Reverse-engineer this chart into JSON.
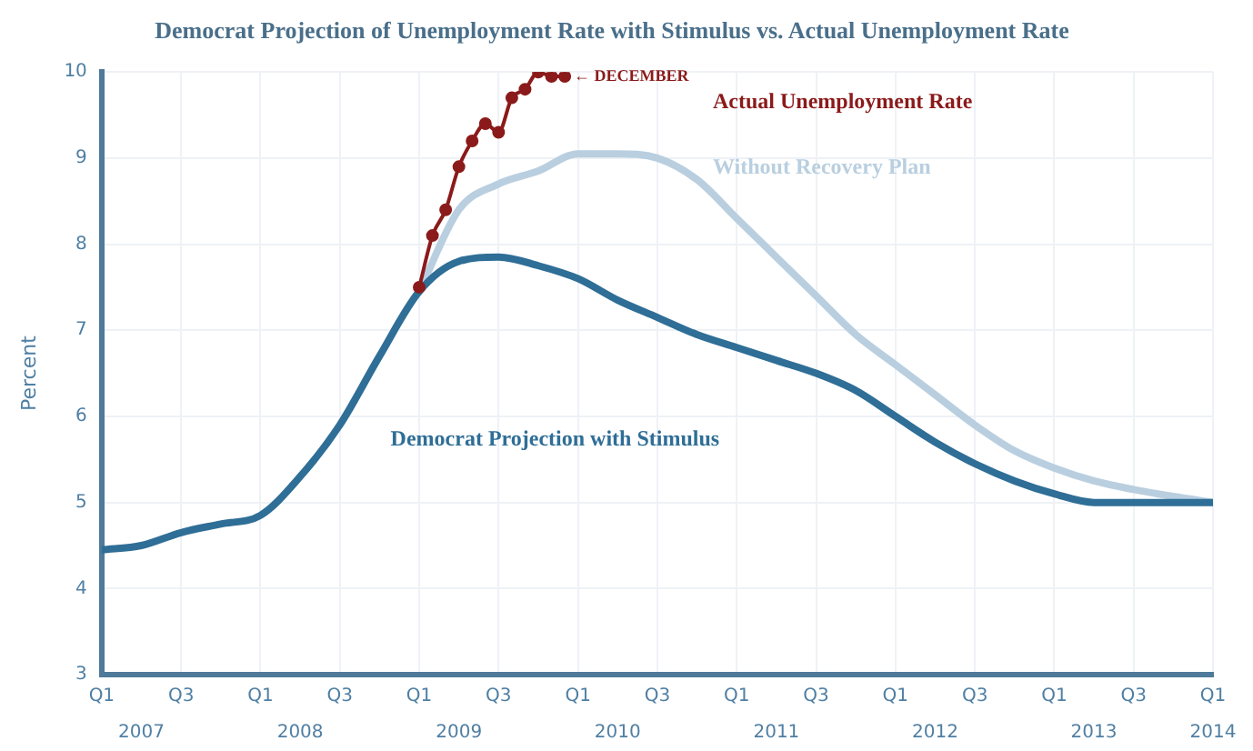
{
  "chart_data": {
    "type": "line",
    "title": "Democrat Projection of Unemployment Rate with Stimulus vs. Actual Unemployment Rate",
    "ylabel": "Percent",
    "xlim": [
      "2007-01",
      "2014-01"
    ],
    "xticks": [
      {
        "value": "2007-04",
        "label": "2007"
      },
      {
        "value": "2008-04",
        "label": "2008"
      },
      {
        "value": "2009-04",
        "label": "2009"
      },
      {
        "value": "2010-04",
        "label": "2010"
      },
      {
        "value": "2011-04",
        "label": "2011"
      },
      {
        "value": "2012-04",
        "label": "2012"
      },
      {
        "value": "2013-04",
        "label": "2013"
      },
      {
        "value": "2014-01",
        "label": "2014"
      }
    ],
    "x2lim": [
      "2007-01",
      "2014-01"
    ],
    "x2ticks": [
      {
        "value": "2007-01",
        "label": "Q1"
      },
      {
        "value": "2007-07",
        "label": "Q3"
      },
      {
        "value": "2008-01",
        "label": "Q1"
      },
      {
        "value": "2008-07",
        "label": "Q3"
      },
      {
        "value": "2009-01",
        "label": "Q1"
      },
      {
        "value": "2009-07",
        "label": "Q3"
      },
      {
        "value": "2010-01",
        "label": "Q1"
      },
      {
        "value": "2010-07",
        "label": "Q3"
      },
      {
        "value": "2011-01",
        "label": "Q1"
      },
      {
        "value": "2011-07",
        "label": "Q3"
      },
      {
        "value": "2012-01",
        "label": "Q1"
      },
      {
        "value": "2012-07",
        "label": "Q3"
      },
      {
        "value": "2013-01",
        "label": "Q1"
      },
      {
        "value": "2013-07",
        "label": "Q3"
      },
      {
        "value": "2014-01",
        "label": "Q1"
      }
    ],
    "ylim": [
      3,
      10
    ],
    "yticks": [
      3,
      4,
      5,
      6,
      7,
      8,
      9,
      10
    ],
    "grid": true,
    "series": [
      {
        "name": "Without Recovery Plan",
        "color": "#b9cfe0",
        "x": [
          "2009-01",
          "2009-04",
          "2009-07",
          "2009-10",
          "2010-01",
          "2010-04",
          "2010-07",
          "2010-10",
          "2011-01",
          "2011-04",
          "2011-07",
          "2011-10",
          "2012-01",
          "2012-04",
          "2012-07",
          "2012-10",
          "2013-01",
          "2013-04",
          "2013-07",
          "2013-10",
          "2014-01"
        ],
        "values": [
          7.45,
          8.4,
          8.7,
          8.85,
          9.05,
          9.05,
          9.0,
          8.75,
          8.3,
          7.85,
          7.4,
          6.95,
          6.6,
          6.25,
          5.9,
          5.6,
          5.4,
          5.25,
          5.15,
          5.07,
          5.0
        ]
      },
      {
        "name": "Democrat Projection with Stimulus",
        "color": "#2f6e96",
        "x": [
          "2007-01",
          "2007-04",
          "2007-07",
          "2007-10",
          "2008-01",
          "2008-04",
          "2008-07",
          "2008-10",
          "2009-01",
          "2009-04",
          "2009-07",
          "2009-10",
          "2010-01",
          "2010-04",
          "2010-07",
          "2010-10",
          "2011-01",
          "2011-04",
          "2011-07",
          "2011-10",
          "2012-01",
          "2012-04",
          "2012-07",
          "2012-10",
          "2013-01",
          "2013-04",
          "2013-07",
          "2013-10",
          "2014-01"
        ],
        "values": [
          4.45,
          4.5,
          4.65,
          4.75,
          4.85,
          5.3,
          5.9,
          6.7,
          7.45,
          7.8,
          7.85,
          7.75,
          7.6,
          7.35,
          7.15,
          6.95,
          6.8,
          6.65,
          6.5,
          6.3,
          6.0,
          5.7,
          5.45,
          5.25,
          5.1,
          5.0,
          5.0,
          5.0,
          5.0
        ]
      },
      {
        "name": "Actual Unemployment Rate",
        "color": "#8b1a1a",
        "marker": "circle",
        "x": [
          "2009-01",
          "2009-02",
          "2009-03",
          "2009-04",
          "2009-05",
          "2009-06",
          "2009-07",
          "2009-08",
          "2009-09",
          "2009-10",
          "2009-11",
          "2009-12"
        ],
        "values": [
          7.5,
          8.1,
          8.4,
          8.9,
          9.2,
          9.4,
          9.3,
          9.7,
          9.8,
          10.0,
          9.95,
          9.95
        ]
      }
    ],
    "annotations": [
      {
        "text": "← DECEMBER",
        "x": "2009-12",
        "y": 9.95
      }
    ]
  }
}
